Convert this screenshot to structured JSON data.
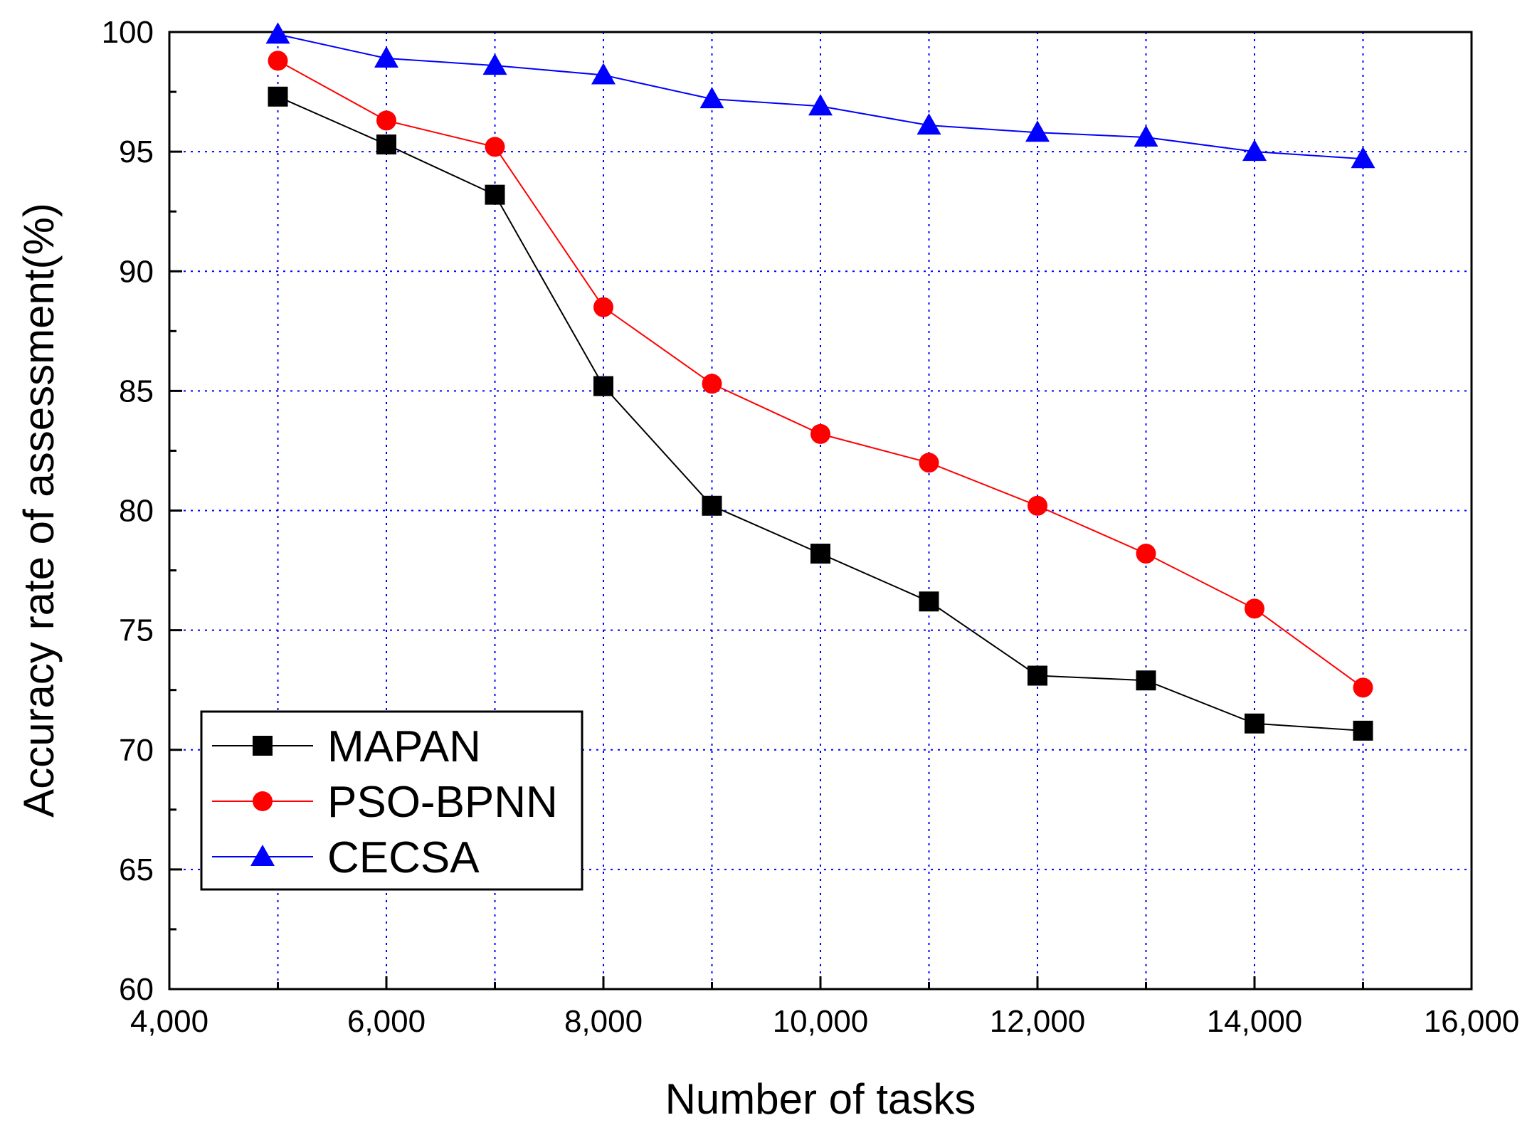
{
  "chart_data": {
    "type": "line",
    "title": "",
    "xlabel": "Number of tasks",
    "ylabel": "Accuracy rate of assessment(%)",
    "xlim": [
      4000,
      16000
    ],
    "ylim": [
      60,
      100
    ],
    "xticks": [
      4000,
      6000,
      8000,
      10000,
      12000,
      14000,
      16000
    ],
    "xtick_labels": [
      "4,000",
      "6,000",
      "8,000",
      "10,000",
      "12,000",
      "14,000",
      "16,000"
    ],
    "yticks": [
      60,
      65,
      70,
      75,
      80,
      85,
      90,
      95,
      100
    ],
    "ytick_labels": [
      "60",
      "65",
      "70",
      "75",
      "80",
      "85",
      "90",
      "95",
      "100"
    ],
    "grid": true,
    "legend_position": "bottom-left",
    "x": [
      5000,
      6000,
      7000,
      8000,
      9000,
      10000,
      11000,
      12000,
      13000,
      14000,
      15000
    ],
    "series": [
      {
        "name": "MAPAN",
        "color": "#000000",
        "marker": "square",
        "values": [
          97.3,
          95.3,
          93.2,
          85.2,
          80.2,
          78.2,
          76.2,
          73.1,
          72.9,
          71.1,
          70.8
        ]
      },
      {
        "name": "PSO-BPNN",
        "color": "#ff0000",
        "marker": "circle",
        "values": [
          98.8,
          96.3,
          95.2,
          88.5,
          85.3,
          83.2,
          82.0,
          80.2,
          78.2,
          75.9,
          72.6
        ]
      },
      {
        "name": "CECSA",
        "color": "#0000ff",
        "marker": "triangle",
        "values": [
          99.9,
          98.9,
          98.6,
          98.2,
          97.2,
          96.9,
          96.1,
          95.8,
          95.6,
          95.0,
          94.7
        ]
      }
    ]
  }
}
